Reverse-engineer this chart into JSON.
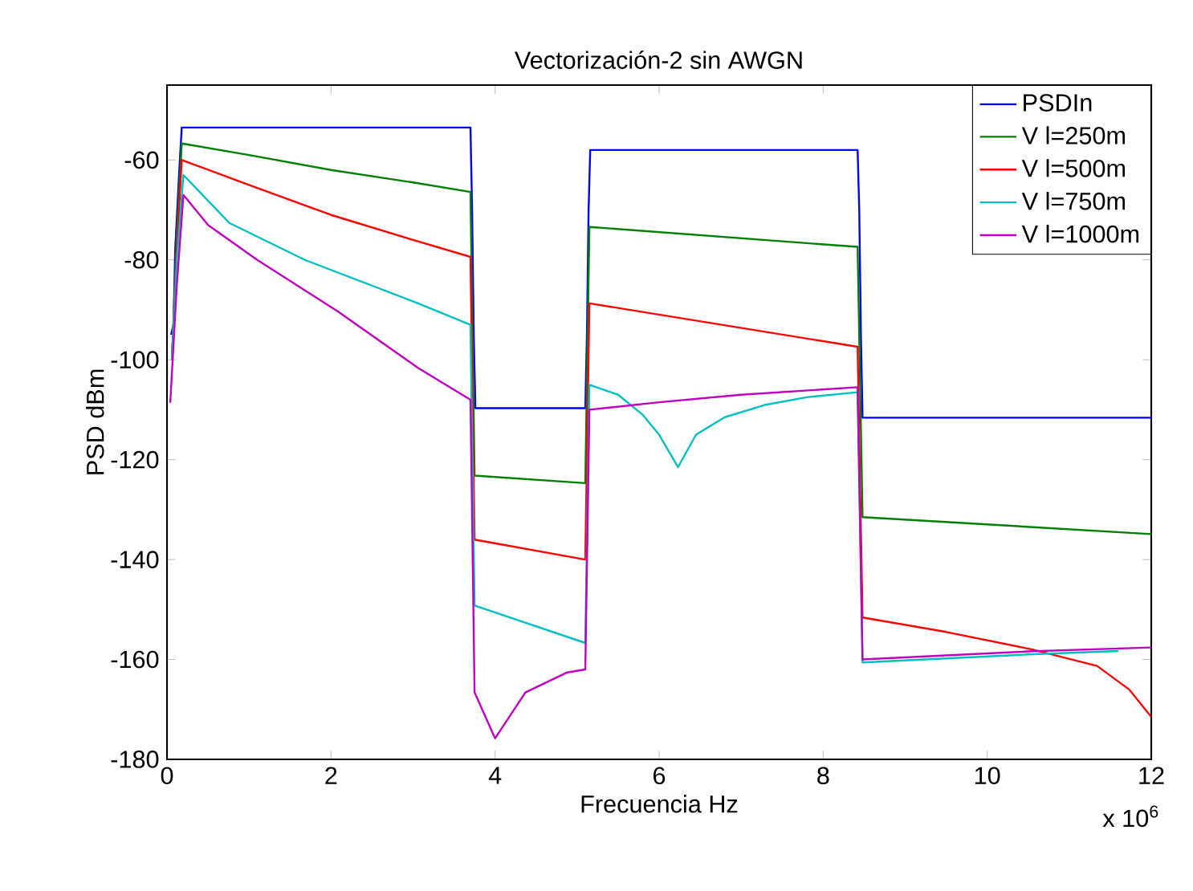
{
  "chart_data": {
    "type": "line",
    "title": "Vectorización-2 sin AWGN",
    "xlabel": "Frecuencia Hz",
    "ylabel": "PSD dBm",
    "annotations": [
      "x 10$^{6}$"
    ],
    "xlim": [
      0,
      12
    ],
    "ylim": [
      -180,
      -45
    ],
    "xticks": [
      0,
      2,
      4,
      6,
      8,
      10,
      12
    ],
    "yticks": [
      -180,
      -160,
      -140,
      -120,
      -100,
      -80,
      -60
    ],
    "grid": false,
    "legend": "top right",
    "marker": "none",
    "line_style": "solid",
    "series": [
      {
        "name": "PSDIn",
        "color": "#0000ff",
        "x": [
          0.05,
          0.08,
          0.1,
          0.15,
          0.18,
          3.7,
          3.72,
          3.74,
          3.76,
          5.1,
          5.12,
          5.14,
          5.16,
          8.42,
          8.44,
          8.46,
          8.48,
          12
        ],
        "values": [
          -95,
          -93,
          -78,
          -62,
          -53.5,
          -53.5,
          -70,
          -95,
          -109.7,
          -109.7,
          -95,
          -70,
          -58,
          -58,
          -70,
          -95,
          -111.6,
          -111.6
        ]
      },
      {
        "name": "V l=250m",
        "color": "#008000",
        "x": [
          0.06,
          0.12,
          0.18,
          1,
          2,
          3,
          3.7,
          3.75,
          5.1,
          5.15,
          8.42,
          8.48,
          12
        ],
        "values": [
          -100,
          -75,
          -56.7,
          -59,
          -62,
          -64.5,
          -66.4,
          -123.2,
          -124.7,
          -73.4,
          -77.4,
          -131.5,
          -134.9
        ]
      },
      {
        "name": "V l=500m",
        "color": "#ff0000",
        "x": [
          0.06,
          0.12,
          0.18,
          1,
          2,
          3,
          3.7,
          3.75,
          5.1,
          5.15,
          8.42,
          8.48,
          9.5,
          10.55,
          11.34,
          11.73,
          12
        ],
        "values": [
          -100,
          -78,
          -60,
          -65,
          -71,
          -76,
          -79.4,
          -136,
          -140,
          -88.7,
          -97.4,
          -151.6,
          -154.5,
          -158,
          -161.3,
          -166,
          -171.5
        ]
      },
      {
        "name": "V l=750m",
        "color": "#00bfbf",
        "x": [
          0.06,
          0.12,
          0.2,
          0.76,
          1.68,
          3.06,
          3.7,
          3.75,
          5.1,
          5.15,
          5.5,
          5.8,
          6,
          6.23,
          6.45,
          6.8,
          7.3,
          7.8,
          8.42,
          8.48,
          9.5,
          10.5,
          11.6
        ],
        "values": [
          -100,
          -80,
          -63,
          -72.6,
          -80,
          -88.7,
          -93,
          -149.2,
          -156.7,
          -105,
          -107,
          -111,
          -115,
          -121.5,
          -115,
          -111.5,
          -109,
          -107.5,
          -106.5,
          -160.6,
          -159.8,
          -159,
          -158.3
        ]
      },
      {
        "name": "V l=1000m",
        "color": "#bf00bf",
        "x": [
          0.04,
          0.12,
          0.2,
          0.5,
          1.1,
          2.08,
          3.06,
          3.7,
          3.75,
          4,
          4.37,
          4.88,
          5.1,
          5.15,
          6,
          7,
          8.42,
          8.48,
          9.5,
          10.5,
          12
        ],
        "values": [
          -108.6,
          -85,
          -67,
          -73,
          -80,
          -90.3,
          -101.6,
          -108,
          -166.6,
          -175.8,
          -166.6,
          -162.6,
          -162,
          -110,
          -108.5,
          -107,
          -105.5,
          -160,
          -159.2,
          -158.4,
          -157.6
        ]
      }
    ]
  }
}
